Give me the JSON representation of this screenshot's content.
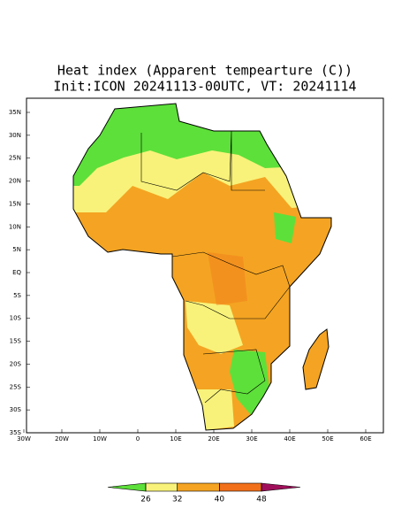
{
  "title": [
    "Heat index (Apparent tempearture (C))",
    "Init:ICON 20241113-00UTC, VT: 20241114"
  ],
  "lat_labels": [
    "35N",
    "30N",
    "25N",
    "20N",
    "15N",
    "10N",
    "5N",
    "EQ",
    "5S",
    "10S",
    "15S",
    "20S",
    "25S",
    "30S",
    "35S"
  ],
  "lon_labels": [
    "30W",
    "20W",
    "10W",
    "0",
    "10E",
    "20E",
    "30E",
    "40E",
    "50E",
    "60E"
  ],
  "colorbar": {
    "ticks": [
      26,
      32,
      40,
      48
    ],
    "colors": [
      "#5de03a",
      "#f8f27a",
      "#f4a422",
      "#f2701a",
      "#a0105a"
    ]
  }
}
